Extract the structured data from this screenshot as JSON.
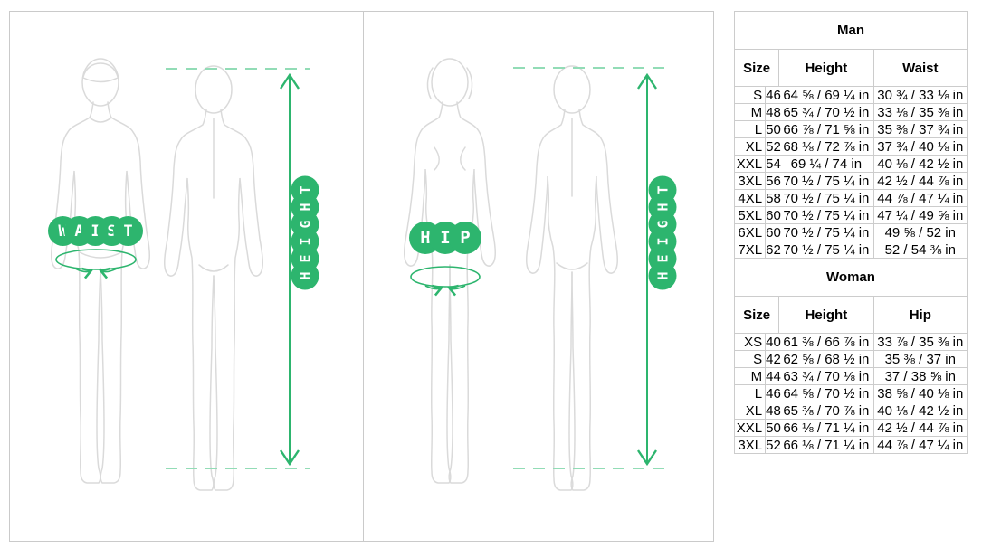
{
  "colors": {
    "green": "#2db56e",
    "green_light": "#92dcb6",
    "figure_outline": "#dadada",
    "panel_border": "#cacaca",
    "table_border": "#cccccc",
    "text": "#000000"
  },
  "panels": [
    {
      "measure_word": "WAIST",
      "height_word": "HEIGHT"
    },
    {
      "measure_word": "HIP",
      "height_word": "HEIGHT"
    }
  ],
  "tables": [
    {
      "title": "Man",
      "col_size": "Size",
      "col_height": "Height",
      "col_measure": "Waist",
      "rows": [
        [
          "S",
          "46",
          "64 ⅝ / 69 ¼ in",
          "30 ¾ / 33 ⅛ in"
        ],
        [
          "M",
          "48",
          "65 ¾ / 70 ½ in",
          "33 ⅛ / 35 ⅜ in"
        ],
        [
          "L",
          "50",
          "66 ⅞ / 71 ⅝ in",
          "35 ⅜ / 37 ¾ in"
        ],
        [
          "XL",
          "52",
          "68 ⅛ / 72 ⅞ in",
          "37 ¾ / 40 ⅛ in"
        ],
        [
          "XXL",
          "54",
          "69 ¼ / 74 in",
          "40 ⅛ / 42 ½ in"
        ],
        [
          "3XL",
          "56",
          "70 ½ / 75 ¼ in",
          "42 ½ / 44 ⅞ in"
        ],
        [
          "4XL",
          "58",
          "70 ½ / 75 ¼ in",
          "44 ⅞ / 47 ¼ in"
        ],
        [
          "5XL",
          "60",
          "70 ½ / 75 ¼ in",
          "47 ¼ / 49 ⅝ in"
        ],
        [
          "6XL",
          "60",
          "70 ½ / 75 ¼ in",
          "49 ⅝ / 52 in"
        ],
        [
          "7XL",
          "62",
          "70 ½ / 75 ¼ in",
          "52 / 54 ⅜ in"
        ]
      ]
    },
    {
      "title": "Woman",
      "col_size": "Size",
      "col_height": "Height",
      "col_measure": "Hip",
      "rows": [
        [
          "XS",
          "40",
          "61 ⅜ / 66 ⅞ in",
          "33 ⅞ / 35 ⅜ in"
        ],
        [
          "S",
          "42",
          "62 ⅝ / 68 ½ in",
          "35 ⅜ / 37 in"
        ],
        [
          "M",
          "44",
          "63 ¾ / 70 ⅛ in",
          "37 / 38 ⅝ in"
        ],
        [
          "L",
          "46",
          "64 ⅝ / 70 ½ in",
          "38 ⅝ / 40 ⅛ in"
        ],
        [
          "XL",
          "48",
          "65 ⅜ / 70 ⅞ in",
          "40 ⅛ / 42 ½ in"
        ],
        [
          "XXL",
          "50",
          "66 ⅛ / 71 ¼ in",
          "42 ½ / 44 ⅞ in"
        ],
        [
          "3XL",
          "52",
          "66 ⅛ / 71 ¼ in",
          "44 ⅞ / 47 ¼ in"
        ]
      ]
    }
  ]
}
